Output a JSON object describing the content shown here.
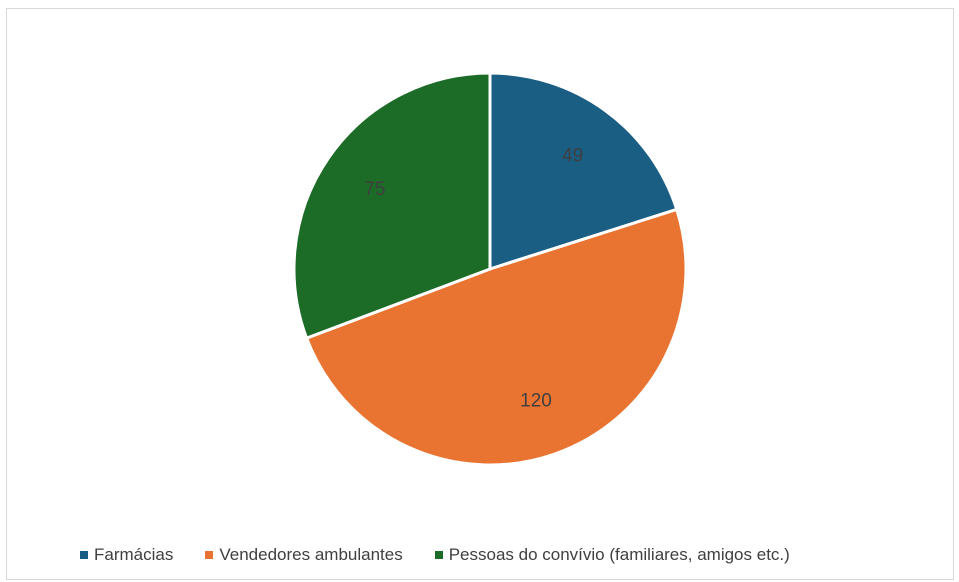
{
  "chart_data": {
    "type": "pie",
    "categories": [
      "Farmácias",
      "Vendedores ambulantes",
      "Pessoas do convívio (familiares, amigos etc.)"
    ],
    "values": [
      49,
      120,
      75
    ],
    "data_labels": [
      "49",
      "120",
      "75"
    ],
    "colors": [
      "#1a5e84",
      "#e97431",
      "#1c6b27"
    ],
    "start_angle": "12 o'clock",
    "direction": "clockwise",
    "legend_position": "bottom"
  }
}
